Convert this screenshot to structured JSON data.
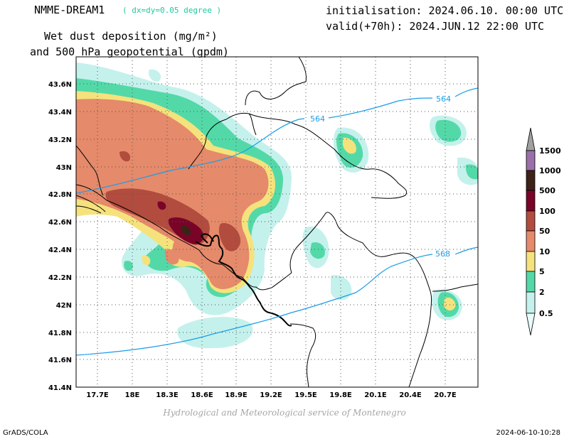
{
  "header": {
    "model_name": "NMME-DREAM1",
    "resolution": "( dx=dy=0.05 degree )",
    "init_line": "initialisation: 2024.06.10. 00:00 UTC",
    "valid_line": "valid(+70h): 2024.JUN.12 22:00 UTC",
    "field_title_1": "Wet dust deposition (mg/m²)",
    "field_title_2": "and 500 hPa geopotential (gpdm)"
  },
  "map": {
    "lat_labels": [
      "43.6N",
      "43.4N",
      "43.2N",
      "43N",
      "42.8N",
      "42.6N",
      "42.4N",
      "42.2N",
      "42N",
      "41.8N",
      "41.6N",
      "41.4N"
    ],
    "lon_labels": [
      "17.7E",
      "18E",
      "18.3E",
      "18.6E",
      "18.9E",
      "19.2E",
      "19.5E",
      "19.8E",
      "20.1E",
      "20.4E",
      "20.7E"
    ],
    "contours": [
      {
        "label": "564"
      },
      {
        "label": "564"
      },
      {
        "label": "568"
      }
    ],
    "contour_color": "#1a9de8"
  },
  "legend": {
    "levels": [
      "1500",
      "1000",
      "500",
      "100",
      "50",
      "10",
      "5",
      "2",
      "0.5"
    ],
    "colors": [
      "#a0a0a0",
      "#9b6fa8",
      "#3d2317",
      "#7a0428",
      "#b24c3e",
      "#e58a6a",
      "#f5e27c",
      "#53d9a8",
      "#c4f1ec",
      "#e9fbfa"
    ]
  },
  "footer": {
    "credit": "Hydrological and Meteorological service of Montenegro",
    "left": "GrADS/COLA",
    "right": "2024-06-10-10:28"
  }
}
